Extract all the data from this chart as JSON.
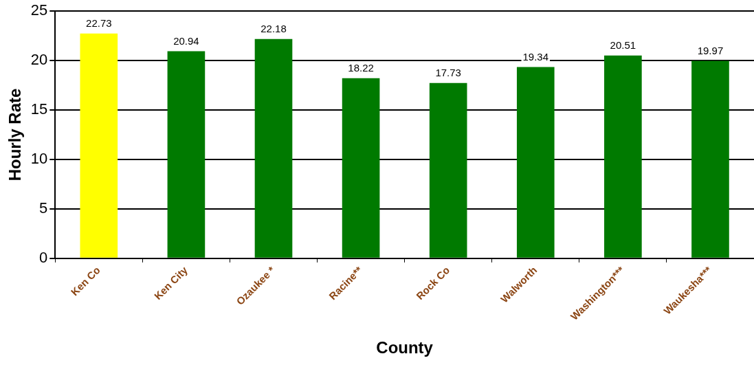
{
  "chart_data": {
    "type": "bar",
    "xlabel": "County",
    "ylabel": "Hourly Rate",
    "categories": [
      "Ken Co",
      "Ken City",
      "Ozaukee *",
      "Racine**",
      "Rock Co",
      "Walworth",
      "Washington***",
      "Waukesha***"
    ],
    "values": [
      22.73,
      20.94,
      22.18,
      18.22,
      17.73,
      19.34,
      20.51,
      19.97
    ],
    "colors": [
      "#ffff00",
      "#007a00",
      "#007a00",
      "#007a00",
      "#007a00",
      "#007a00",
      "#007a00",
      "#007a00"
    ],
    "ylim": [
      0,
      25
    ],
    "yticks": [
      0,
      5,
      10,
      15,
      20,
      25
    ],
    "grid": "y",
    "data_labels": true
  }
}
